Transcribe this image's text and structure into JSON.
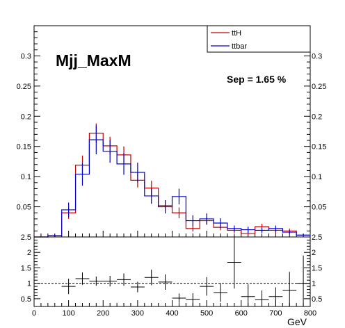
{
  "chart_data": [
    {
      "type": "histogram",
      "panel": "top",
      "title": "Mjj_MaxM",
      "annotation": "Sep = 1.65 %",
      "xlim": [
        0,
        800
      ],
      "ylim": [
        0,
        0.35
      ],
      "bin_edges": [
        0,
        40,
        80,
        120,
        160,
        200,
        240,
        280,
        320,
        360,
        400,
        440,
        480,
        520,
        560,
        600,
        640,
        680,
        720,
        760,
        800
      ],
      "yticks": [
        "0.05",
        "0.1",
        "0.15",
        "0.2",
        "0.25",
        "0.3"
      ],
      "ytick_values": [
        0.05,
        0.1,
        0.15,
        0.2,
        0.25,
        0.3
      ],
      "legend_position": "top-right",
      "series": [
        {
          "name": "ttH",
          "color": "#cc0000",
          "values": [
            0.0,
            0.002,
            0.04,
            0.119,
            0.172,
            0.151,
            0.136,
            0.094,
            0.081,
            0.052,
            0.04,
            0.014,
            0.027,
            0.016,
            0.011,
            0.006,
            0.017,
            0.011,
            0.01,
            0.003
          ],
          "errors": [
            0.0,
            0.002,
            0.01,
            0.016,
            0.016,
            0.015,
            0.014,
            0.012,
            0.012,
            0.009,
            0.009,
            0.005,
            0.007,
            0.005,
            0.004,
            0.003,
            0.005,
            0.004,
            0.004,
            0.002
          ]
        },
        {
          "name": "ttbar",
          "color": "#0000cc",
          "values": [
            0.0,
            0.002,
            0.045,
            0.104,
            0.161,
            0.142,
            0.121,
            0.107,
            0.068,
            0.05,
            0.067,
            0.027,
            0.03,
            0.023,
            0.014,
            0.012,
            0.011,
            0.014,
            0.008,
            0.003
          ],
          "errors": [
            0.0,
            0.002,
            0.012,
            0.019,
            0.024,
            0.019,
            0.018,
            0.016,
            0.013,
            0.011,
            0.013,
            0.009,
            0.009,
            0.008,
            0.005,
            0.005,
            0.004,
            0.005,
            0.003,
            0.002
          ]
        }
      ]
    },
    {
      "type": "ratio",
      "panel": "bottom",
      "xlabel": "GeV",
      "xlim": [
        0,
        800
      ],
      "ylim": [
        0.25,
        2.5
      ],
      "xticks": [
        "0",
        "100",
        "200",
        "300",
        "400",
        "500",
        "600",
        "700",
        "800"
      ],
      "xtick_values": [
        0,
        100,
        200,
        300,
        400,
        500,
        600,
        700,
        800
      ],
      "yticks": [
        "0.5",
        "1",
        "1.5",
        "2",
        "2.5"
      ],
      "ytick_values": [
        0.5,
        1,
        1.5,
        2,
        2.5
      ],
      "reference_line": 1,
      "bin_centers": [
        100,
        140,
        180,
        220,
        260,
        300,
        340,
        380,
        420,
        460,
        500,
        540,
        580,
        620,
        660,
        700,
        740,
        780
      ],
      "values": [
        0.9,
        1.15,
        1.07,
        1.07,
        1.12,
        0.88,
        1.19,
        1.04,
        0.52,
        0.48,
        0.9,
        0.7,
        1.68,
        0.57,
        0.47,
        0.57,
        0.77,
        1.0
      ],
      "errors": [
        0.25,
        0.2,
        0.15,
        0.17,
        0.2,
        0.17,
        0.25,
        0.25,
        0.15,
        0.2,
        0.3,
        0.3,
        0.85,
        0.4,
        0.3,
        0.3,
        0.6,
        0.9
      ]
    }
  ],
  "labels": {
    "top_title": "Mjj_MaxM",
    "sep": "Sep = 1.65 %",
    "legend_ttH": "ttH",
    "legend_ttbar": "ttbar",
    "x_unit": "GeV"
  },
  "colors": {
    "ttH": "#cc0000",
    "ttbar": "#0000cc",
    "frame": "#000000"
  }
}
